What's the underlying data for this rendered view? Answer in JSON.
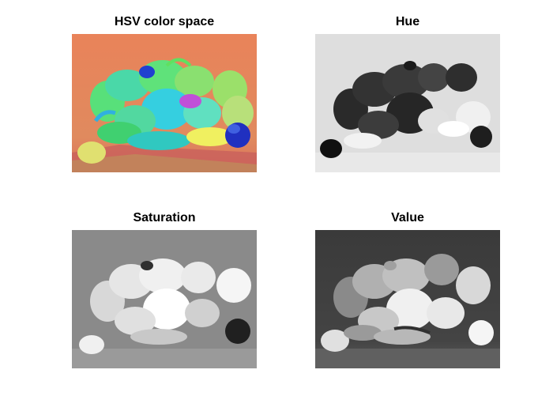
{
  "figure": {
    "panels": [
      {
        "title": "HSV color space"
      },
      {
        "title": "Hue"
      },
      {
        "title": "Saturation"
      },
      {
        "title": "Value"
      }
    ]
  },
  "colors": {
    "background": "#ffffff",
    "hsv_backdrop": "#e88a5a",
    "hsv_table": "#c9704f",
    "hsv_pepper_green": "#55e070",
    "hsv_pepper_cyan": "#38d8d8",
    "hsv_pepper_blue": "#2233cc",
    "hue_backdrop": "#dcdcdc",
    "hue_dark": "#2b2b2b",
    "sat_backdrop": "#8c8c8c",
    "value_backdrop": "#3a3a3a"
  }
}
